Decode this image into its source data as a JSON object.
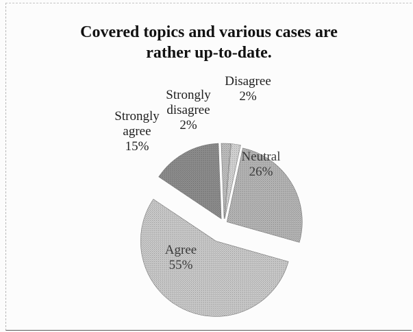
{
  "chart_data": {
    "type": "pie",
    "title_lines": [
      "Covered topics and various cases are",
      "rather up-to-date."
    ],
    "slices": [
      {
        "label_lines": [
          "Disagree",
          "2%"
        ],
        "value": 2,
        "color": "#d2d2d2"
      },
      {
        "label_lines": [
          "Neutral",
          "26%"
        ],
        "value": 26,
        "color": "#b4b4b4"
      },
      {
        "label_lines": [
          "Agree",
          "55%"
        ],
        "value": 55,
        "color": "#c8c8c8"
      },
      {
        "label_lines": [
          "Strongly",
          "agree",
          "15%"
        ],
        "value": 15,
        "color": "#8c8c8c"
      },
      {
        "label_lines": [
          "Strongly",
          "disagree",
          "2%"
        ],
        "value": 2,
        "color": "#bdbdbd"
      }
    ],
    "exploded": true,
    "legend": "none"
  }
}
